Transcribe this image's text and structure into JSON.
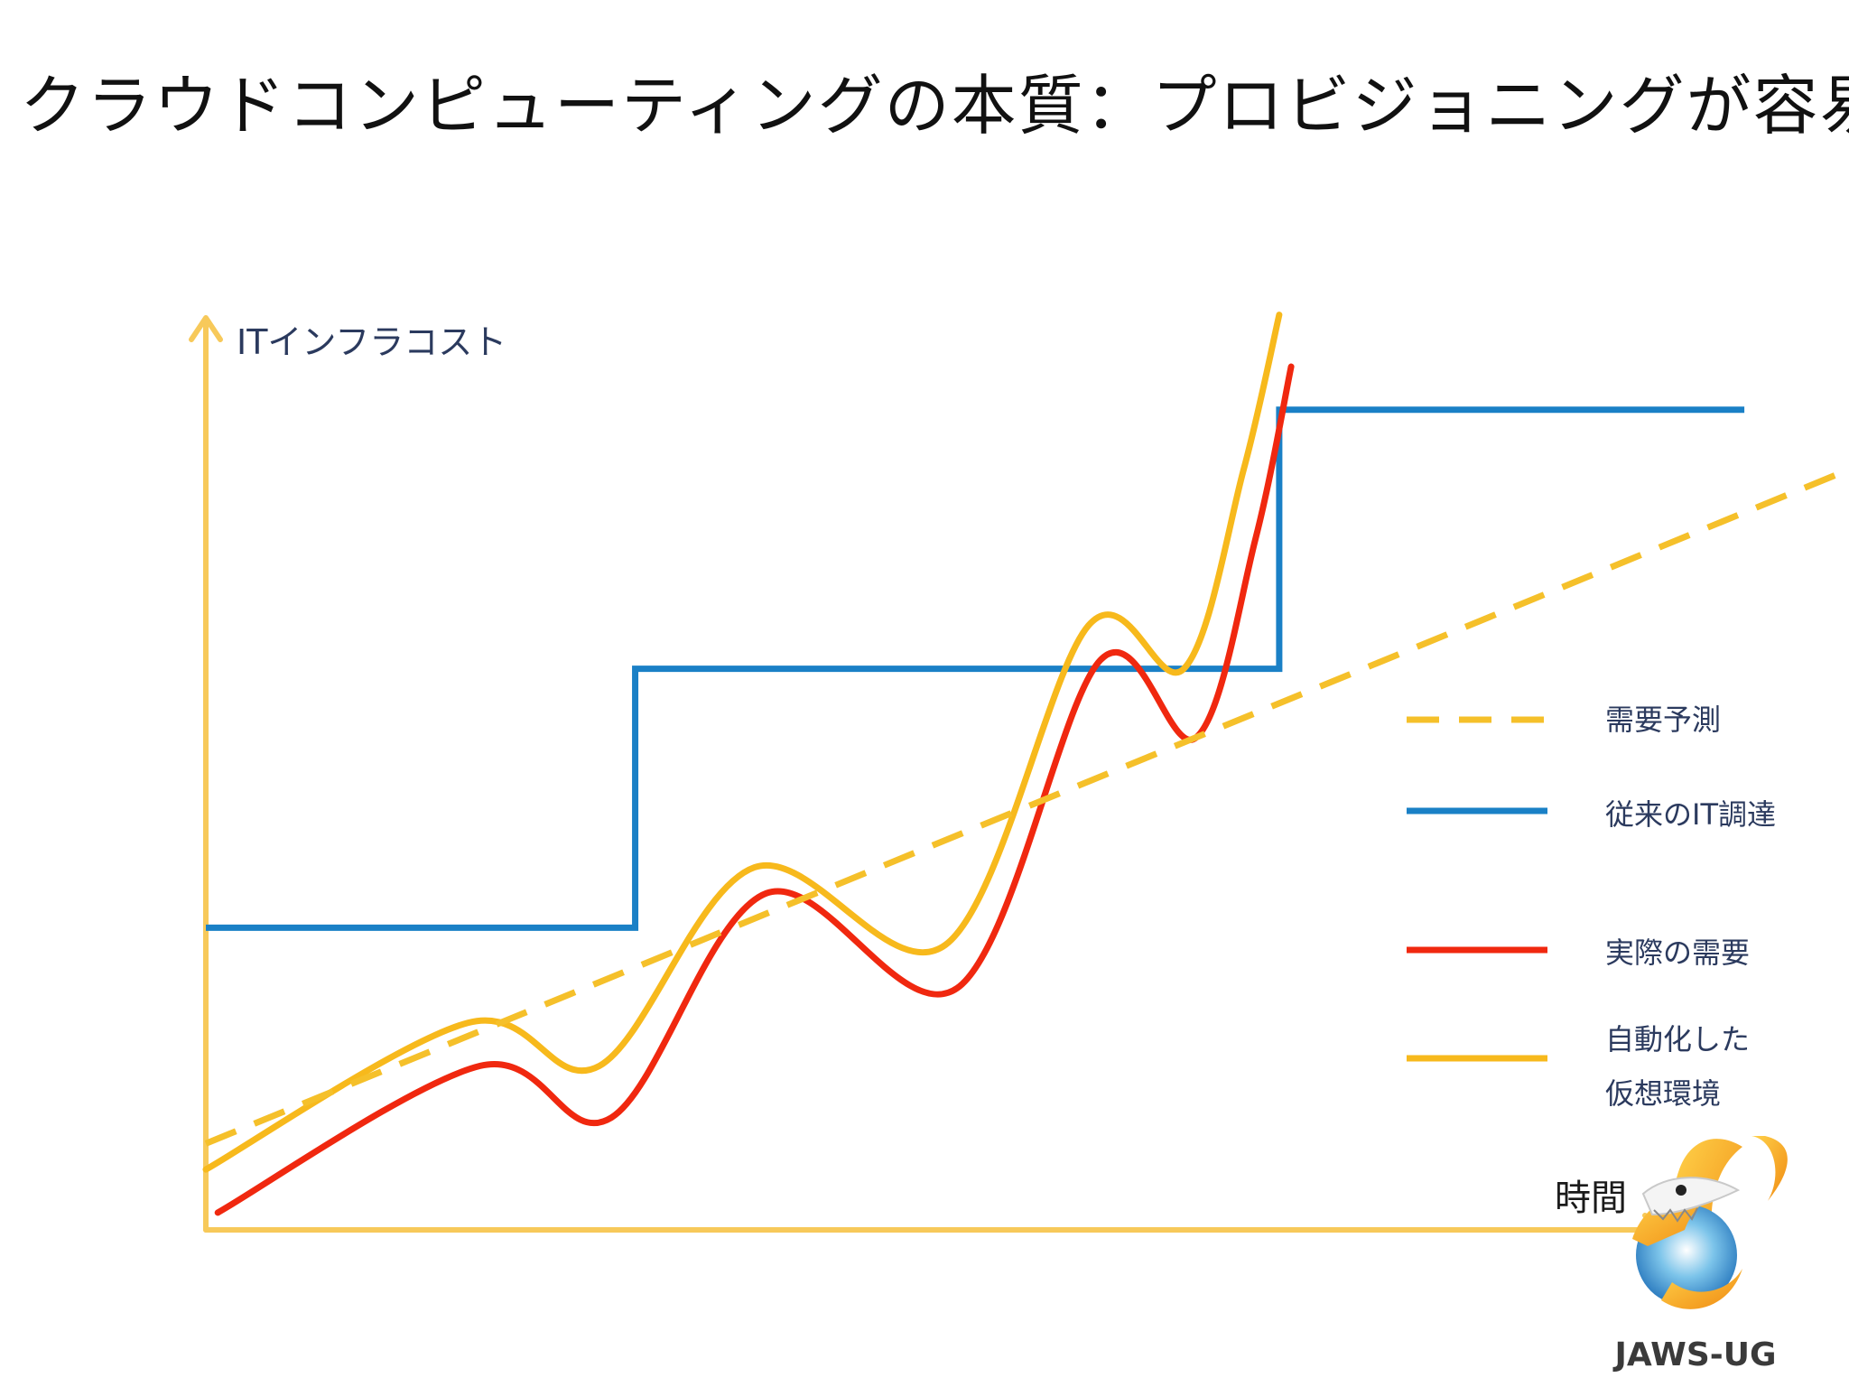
{
  "title": "クラウドコンピューティングの本質：プロビジョニングが容易",
  "logo_text": "JAWS-UG",
  "colors": {
    "forecast": "#F5C02A",
    "traditional": "#1A80C6",
    "actual": "#F0280F",
    "automated": "#F7B91C",
    "axis": "#F7C95A",
    "label": "#2B3A5E"
  },
  "chart_data": {
    "type": "line",
    "ylabel": "ITインフラコスト",
    "xlabel": "時間",
    "grid": false,
    "legend": "right",
    "series": [
      {
        "key": "forecast",
        "name": "需要予測",
        "style": "dashed",
        "x": [
          0,
          15
        ],
        "y": [
          1,
          9.5
        ]
      },
      {
        "key": "traditional",
        "name": "従来のIT調達",
        "style": "step",
        "x": [
          0,
          3.6,
          3.6,
          9.0,
          9.0,
          12.9
        ],
        "y": [
          3.5,
          3.5,
          6.5,
          6.5,
          9.5,
          9.5
        ]
      },
      {
        "key": "actual",
        "name": "実際の需要",
        "style": "line",
        "x": [
          0.1,
          2.3,
          3.4,
          4.7,
          6.3,
          7.5,
          8.3,
          8.8,
          9.1
        ],
        "y": [
          0.2,
          1.9,
          1.3,
          3.9,
          2.8,
          6.6,
          5.7,
          8.0,
          10.0
        ]
      },
      {
        "key": "automated",
        "name": "自動化した\n仮想環境",
        "name_lines": [
          "自動化した",
          "仮想環境"
        ],
        "style": "line",
        "x": [
          0,
          2.2,
          3.3,
          4.6,
          6.2,
          7.4,
          8.2,
          8.7,
          9.0
        ],
        "y": [
          0.7,
          2.4,
          1.9,
          4.2,
          3.3,
          7.0,
          6.5,
          8.8,
          10.6
        ]
      }
    ]
  }
}
